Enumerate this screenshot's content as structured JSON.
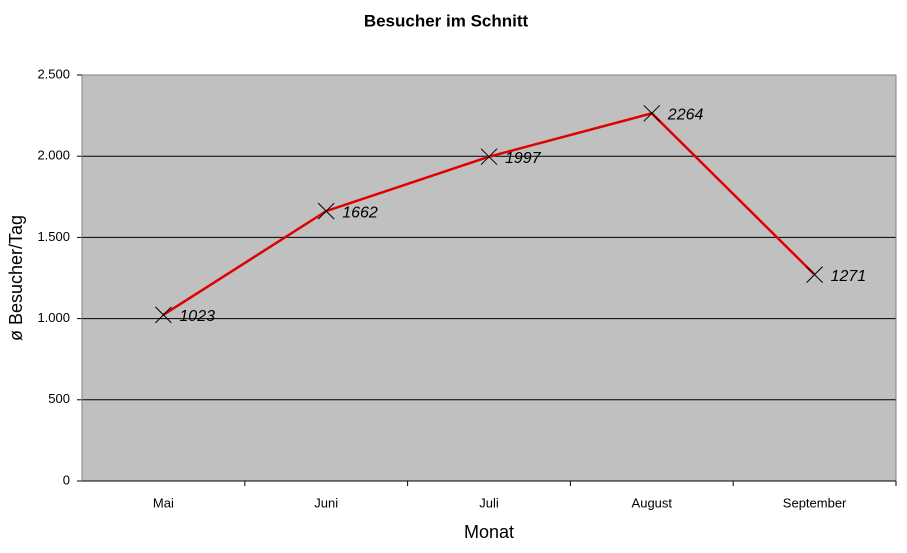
{
  "chart_data": {
    "type": "line",
    "title": "Besucher im Schnitt",
    "x_label": "Monat",
    "y_label": "ø Besucher/Tag",
    "categories": [
      "Mai",
      "Juni",
      "Juli",
      "August",
      "September"
    ],
    "series": [
      {
        "name": "Besucher",
        "color": "#e00000",
        "values": [
          1023,
          1662,
          1997,
          2264,
          1271
        ]
      }
    ],
    "ylim": [
      0,
      2500
    ],
    "yticks": [
      0,
      500,
      {
        "value": 1000,
        "label": "1.000"
      },
      {
        "value": 1500,
        "label": "1.500"
      },
      {
        "value": 2000,
        "label": "2.000"
      },
      {
        "value": 2500,
        "label": "2.500"
      }
    ],
    "grid": true,
    "plot_background": "#c0c0c0"
  }
}
